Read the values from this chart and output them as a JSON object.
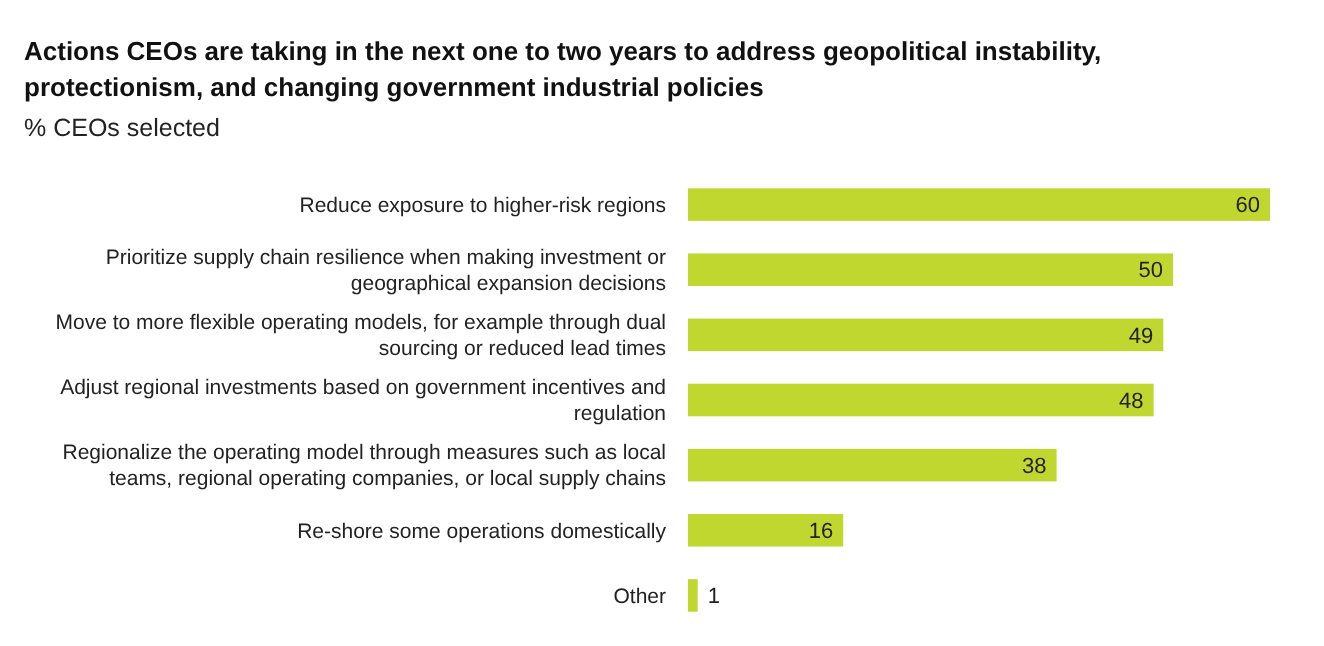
{
  "chart_data": {
    "type": "bar",
    "orientation": "horizontal",
    "title": "Actions CEOs are taking in the next one to two years to address geopolitical instability, protectionism, and changing government industrial policies",
    "subtitle": "% CEOs selected",
    "categories": [
      "Reduce exposure to higher-risk regions",
      "Prioritize supply chain resilience when making investment or geographical expansion decisions",
      "Move to more flexible operating models, for example through dual sourcing or reduced lead times",
      "Adjust regional investments based on government incentives and regulation",
      "Regionalize the operating model through measures such as local teams, regional operating companies, or local supply chains",
      "Re-shore some operations domestically",
      "Other"
    ],
    "values": [
      60,
      50,
      49,
      48,
      38,
      16,
      1
    ],
    "color": "#c0d72f",
    "data_labels": true
  }
}
